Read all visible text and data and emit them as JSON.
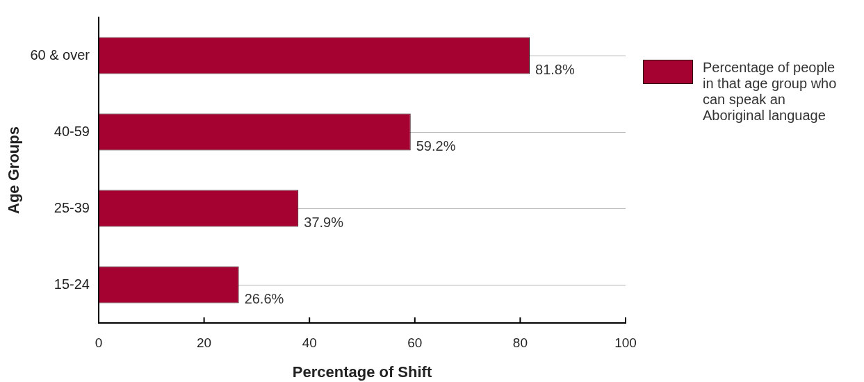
{
  "chart_data": {
    "type": "bar",
    "orientation": "horizontal",
    "xlabel": "Percentage of Shift",
    "ylabel": "Age Groups",
    "categories": [
      "60 & over",
      "40-59",
      "25-39",
      "15-24"
    ],
    "series": [
      {
        "name": "Percentage of people in that age group who can speak an Aboriginal language",
        "color": "#a50232",
        "values": [
          81.8,
          59.2,
          37.9,
          26.6
        ],
        "value_labels": [
          "81.8%",
          "59.2%",
          "37.9%",
          "26.6%"
        ]
      }
    ],
    "xlim": [
      0,
      100
    ],
    "xticks": [
      0,
      20,
      40,
      60,
      80,
      100
    ],
    "grid": "y",
    "legend": "top right"
  }
}
